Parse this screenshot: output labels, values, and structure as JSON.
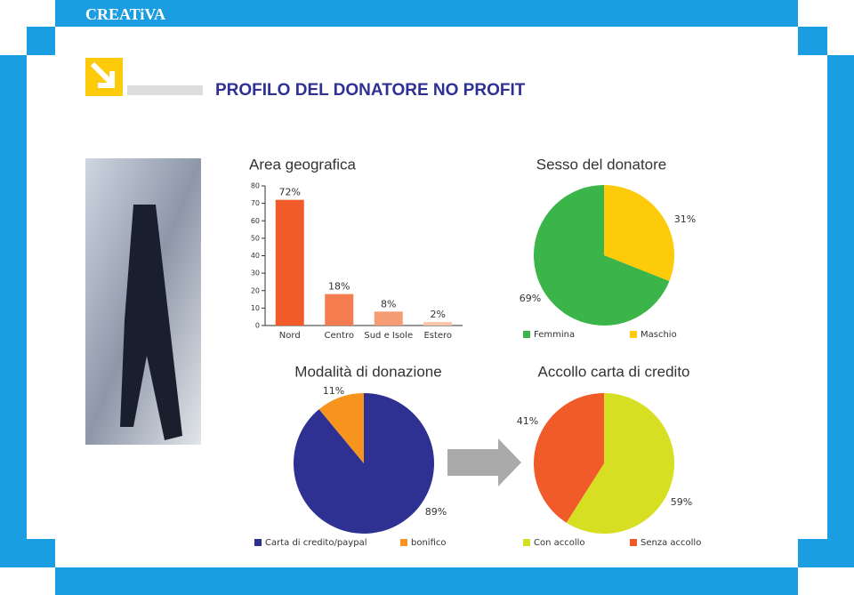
{
  "header": {
    "brand": "CREATiVA",
    "title": "PROFILO DEL DONATORE NO PROFIT"
  },
  "chart_data": [
    {
      "type": "bar",
      "title": "Area geografica",
      "categories": [
        "Nord",
        "Centro",
        "Sud e Isole",
        "Estero"
      ],
      "values": [
        72,
        18,
        8,
        2
      ],
      "value_labels": [
        "72%",
        "18%",
        "8%",
        "2%"
      ],
      "colors": [
        "#f15a29",
        "#f47c4e",
        "#f79d76",
        "#fbc6a8"
      ],
      "ylim": [
        0,
        80
      ],
      "yticks": [
        0,
        10,
        20,
        30,
        40,
        50,
        60,
        70,
        80
      ]
    },
    {
      "type": "pie",
      "title": "Sesso del donatore",
      "categories": [
        "Maschio",
        "Femmina"
      ],
      "values": [
        31,
        69
      ],
      "value_labels": [
        "31%",
        "69%"
      ],
      "colors": [
        "#fecb0a",
        "#3bb54a"
      ]
    },
    {
      "type": "pie",
      "title": "Modalità di donazione",
      "categories": [
        "Carta di credito/paypal",
        "bonifico"
      ],
      "values": [
        89,
        11
      ],
      "value_labels": [
        "89%",
        "11%"
      ],
      "colors": [
        "#2e3192",
        "#f7941d"
      ]
    },
    {
      "type": "pie",
      "title": "Accollo carta di credito",
      "categories": [
        "Con accollo",
        "Senza accollo"
      ],
      "values": [
        59,
        41
      ],
      "value_labels": [
        "59%",
        "41%"
      ],
      "colors": [
        "#d7df23",
        "#f15a29"
      ]
    }
  ]
}
